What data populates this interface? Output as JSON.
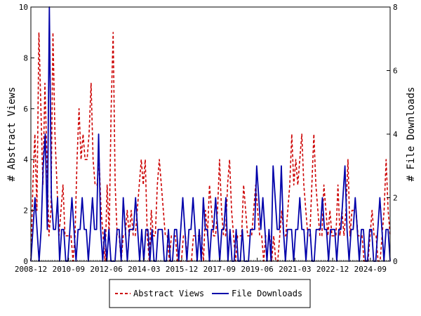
{
  "chart_data": {
    "type": "line",
    "left_axis": {
      "label": "# Abstract Views",
      "ylim": [
        0,
        10
      ],
      "ticks": [
        "0",
        "2",
        "4",
        "6",
        "8",
        "10"
      ]
    },
    "right_axis": {
      "label": "# File Downloads",
      "ylim": [
        0,
        8
      ],
      "ticks": [
        "0",
        "2",
        "4",
        "6",
        "8"
      ]
    },
    "x_ticks": [
      "2008-12",
      "2010-09",
      "2012-06",
      "2014-03",
      "2015-12",
      "2017-09",
      "2019-06",
      "2021-03",
      "2022-12",
      "2024-09"
    ],
    "x_range": [
      "2008-12",
      "2025-08"
    ],
    "grid": false,
    "legend_position": "bottom-center",
    "series": [
      {
        "name": "Abstract Views",
        "axis": "left",
        "color": "#cc0000",
        "style": "dashed",
        "values": [
          0,
          3,
          5,
          2,
          9,
          6,
          3,
          7,
          4,
          1,
          2,
          9,
          5,
          3,
          1,
          2,
          3,
          1,
          1,
          1,
          1,
          0,
          1,
          4,
          6,
          4,
          5,
          4,
          4,
          5,
          7,
          4,
          3,
          3,
          4,
          2,
          1,
          0,
          3,
          1,
          6,
          9,
          3,
          1,
          1,
          0,
          1,
          1,
          2,
          1,
          2,
          1,
          1,
          2,
          3,
          4,
          3,
          4,
          1,
          0,
          2,
          1,
          1,
          3,
          4,
          3,
          2,
          1,
          1,
          0,
          1,
          1,
          1,
          0,
          0,
          0,
          1,
          1,
          0,
          0,
          0,
          1,
          1,
          1,
          1,
          1,
          0,
          2,
          1,
          3,
          2,
          1,
          1,
          2,
          4,
          2,
          1,
          1,
          3,
          4,
          2,
          1,
          0,
          1,
          1,
          1,
          3,
          2,
          1,
          1,
          1,
          2,
          3,
          2,
          1,
          1,
          0,
          1,
          1,
          1,
          0,
          1,
          0,
          0,
          1,
          2,
          1,
          1,
          2,
          3,
          5,
          3,
          4,
          3,
          4,
          5,
          3,
          2,
          1,
          1,
          3,
          5,
          3,
          2,
          1,
          1,
          3,
          2,
          1,
          2,
          1,
          1,
          1,
          3,
          1,
          2,
          1,
          2,
          4,
          1,
          2,
          2,
          2,
          1,
          1,
          1,
          0,
          0,
          0,
          1,
          2,
          1,
          1,
          0,
          0,
          1,
          2,
          4,
          2,
          1
        ]
      },
      {
        "name": "File Downloads",
        "axis": "right",
        "color": "#0000aa",
        "style": "solid",
        "values": [
          0,
          1,
          2,
          1,
          0,
          1,
          3,
          4,
          1,
          8,
          2,
          1,
          1,
          2,
          0,
          1,
          1,
          0,
          0,
          1,
          2,
          1,
          0,
          1,
          1,
          2,
          1,
          1,
          0,
          1,
          2,
          1,
          1,
          4,
          1,
          0,
          1,
          0,
          1,
          0,
          0,
          0,
          1,
          1,
          0,
          2,
          1,
          0,
          1,
          1,
          1,
          2,
          1,
          0,
          1,
          0,
          1,
          1,
          0,
          1,
          0,
          0,
          1,
          1,
          1,
          0,
          0,
          1,
          0,
          0,
          1,
          1,
          0,
          1,
          2,
          1,
          0,
          1,
          1,
          2,
          1,
          0,
          1,
          0,
          2,
          1,
          1,
          0,
          1,
          1,
          2,
          1,
          0,
          1,
          1,
          2,
          0,
          1,
          0,
          0,
          1,
          0,
          0,
          1,
          0,
          0,
          0,
          1,
          1,
          1,
          3,
          2,
          1,
          2,
          1,
          0,
          1,
          0,
          3,
          2,
          1,
          1,
          3,
          1,
          0,
          1,
          1,
          1,
          0,
          1,
          1,
          2,
          1,
          1,
          0,
          1,
          1,
          0,
          0,
          1,
          1,
          1,
          2,
          1,
          1,
          0,
          1,
          1,
          1,
          0,
          1,
          1,
          2,
          3,
          1,
          0,
          1,
          1,
          2,
          1,
          0,
          1,
          1,
          0,
          0,
          1,
          1,
          0,
          0,
          1,
          2,
          1,
          0,
          1,
          1,
          0
        ]
      }
    ]
  }
}
